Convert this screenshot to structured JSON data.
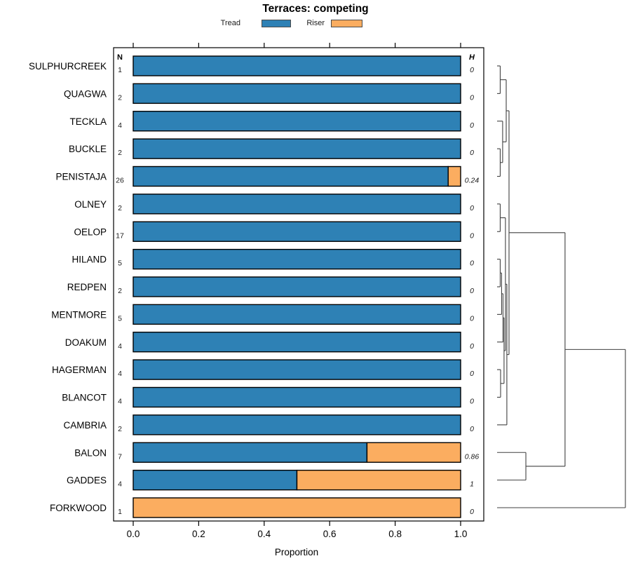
{
  "title": "Terraces: competing",
  "legend": {
    "position": "top-center",
    "items": [
      {
        "label": "Tread",
        "color": "#2e81b5"
      },
      {
        "label": "Riser",
        "color": "#fbad60"
      }
    ]
  },
  "chart_data": {
    "type": "bar",
    "orientation": "horizontal-stacked",
    "title": "Terraces: competing",
    "xlabel": "Proportion",
    "ylabel": "",
    "xlim": [
      0,
      1
    ],
    "x_ticks": [
      0.0,
      0.2,
      0.4,
      0.6,
      0.8,
      1.0
    ],
    "x_tick_labels": [
      "0.0",
      "0.2",
      "0.4",
      "0.6",
      "0.8",
      "1.0"
    ],
    "grid": false,
    "n_header": "N",
    "h_header": "H",
    "categories": [
      "SULPHURCREEK",
      "QUAGWA",
      "TECKLA",
      "BUCKLE",
      "PENISTAJA",
      "OLNEY",
      "OELOP",
      "HILAND",
      "REDPEN",
      "MENTMORE",
      "DOAKUM",
      "HAGERMAN",
      "BLANCOT",
      "CAMBRIA",
      "BALON",
      "GADDES",
      "FORKWOOD"
    ],
    "n_values": [
      1,
      2,
      4,
      2,
      26,
      2,
      17,
      5,
      2,
      5,
      4,
      4,
      4,
      2,
      7,
      4,
      1
    ],
    "h_values": [
      "0",
      "0",
      "0",
      "0",
      "0.24",
      "0",
      "0",
      "0",
      "0",
      "0",
      "0",
      "0",
      "0",
      "0",
      "0.86",
      "1",
      "0"
    ],
    "series": [
      {
        "name": "Tread",
        "color": "#2e81b5",
        "values": [
          1,
          1,
          1,
          1,
          0.962,
          1,
          1,
          1,
          1,
          1,
          1,
          1,
          1,
          1,
          0.714,
          0.5,
          0
        ]
      },
      {
        "name": "Riser",
        "color": "#fbad60",
        "values": [
          0,
          0,
          0,
          0,
          0.038,
          0,
          0,
          0,
          0,
          0,
          0,
          0,
          0,
          0,
          0.286,
          0.5,
          1
        ]
      }
    ],
    "dendrogram": {
      "side": "right",
      "merges": [
        {
          "id": "m1",
          "a": "SULPHURCREEK",
          "b": "QUAGWA",
          "h": 0.019
        },
        {
          "id": "m2",
          "a": "BUCKLE",
          "b": "PENISTAJA",
          "h": 0.019
        },
        {
          "id": "m3",
          "a": "TECKLA",
          "b": "#m2",
          "h": 0.038
        },
        {
          "id": "m4",
          "a": "#m1",
          "b": "#m3",
          "h": 0.066
        },
        {
          "id": "m5",
          "a": "OLNEY",
          "b": "OELOP",
          "h": 0.019
        },
        {
          "id": "m6",
          "a": "HILAND",
          "b": "REDPEN",
          "h": 0.019
        },
        {
          "id": "m7",
          "a": "#m6",
          "b": "MENTMORE",
          "h": 0.03
        },
        {
          "id": "m8",
          "a": "#m7",
          "b": "DOAKUM",
          "h": 0.041
        },
        {
          "id": "m9",
          "a": "HAGERMAN",
          "b": "BLANCOT",
          "h": 0.022
        },
        {
          "id": "m10",
          "a": "#m8",
          "b": "#m9",
          "h": 0.049
        },
        {
          "id": "m11",
          "a": "#m5",
          "b": "#m10",
          "h": 0.06
        },
        {
          "id": "m12",
          "a": "#m11",
          "b": "CAMBRIA",
          "h": 0.071
        },
        {
          "id": "m13",
          "a": "#m4",
          "b": "#m12",
          "h": 0.088
        },
        {
          "id": "m14",
          "a": "BALON",
          "b": "GADDES",
          "h": 0.22
        },
        {
          "id": "m15",
          "a": "#m13",
          "b": "#m14",
          "h": 0.527
        },
        {
          "id": "m16",
          "a": "#m15",
          "b": "FORKWOOD",
          "h": 1.0
        }
      ]
    }
  }
}
